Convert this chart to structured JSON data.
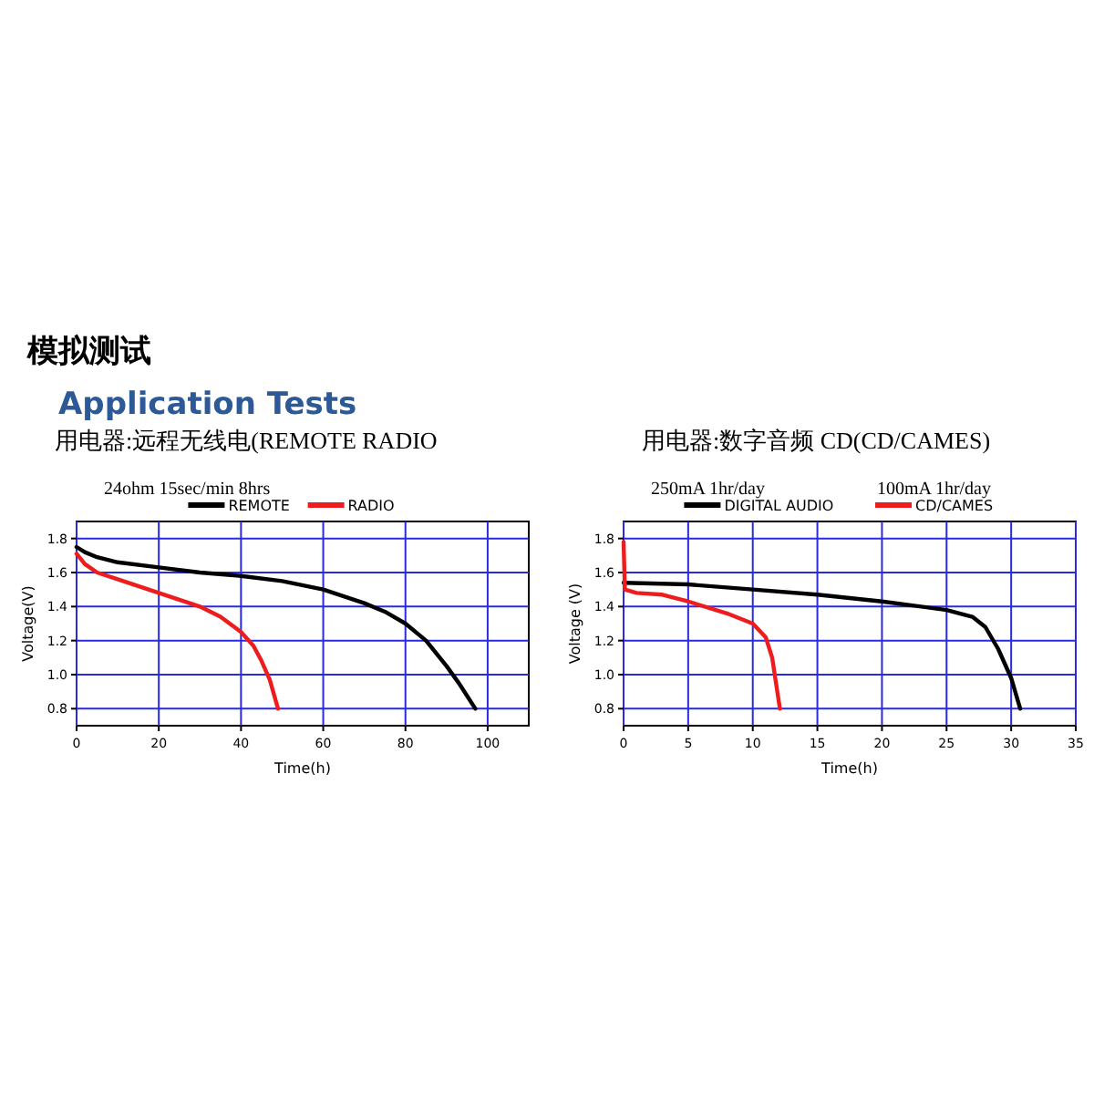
{
  "chart_data": [
    {
      "type": "line",
      "title": "模拟测试",
      "subtitle": "Application Tests",
      "annotations": [
        "用电器:远程无线电(REMOTE RADIO",
        "24ohm 15sec/min 8hrs"
      ],
      "xlabel": "Time(h)",
      "ylabel": "Voltage(V)",
      "xlim": [
        0,
        110
      ],
      "xticks": [
        0,
        20,
        40,
        60,
        80,
        100
      ],
      "ylim": [
        0.7,
        1.9
      ],
      "yticks": [
        0.8,
        {
          "value": 1.0,
          "label": "1.0"
        },
        1.2,
        1.4,
        1.6,
        1.8
      ],
      "grid": true,
      "legend": "top",
      "marker": "none",
      "line_style": "solid",
      "series": [
        {
          "name": "REMOTE",
          "color": "#000000",
          "x": [
            0,
            2,
            5,
            10,
            20,
            30,
            40,
            50,
            60,
            70,
            75,
            80,
            85,
            90,
            93,
            97
          ],
          "values": [
            1.75,
            1.72,
            1.69,
            1.66,
            1.63,
            1.6,
            1.58,
            1.55,
            1.5,
            1.42,
            1.37,
            1.3,
            1.2,
            1.05,
            0.95,
            0.8
          ]
        },
        {
          "name": "RADIO",
          "color": "#ee1c1c",
          "x": [
            0,
            2,
            5,
            10,
            20,
            30,
            35,
            40,
            43,
            45,
            47,
            49
          ],
          "values": [
            1.71,
            1.65,
            1.6,
            1.56,
            1.48,
            1.4,
            1.34,
            1.25,
            1.17,
            1.08,
            0.97,
            0.8
          ]
        }
      ]
    },
    {
      "type": "line",
      "title": "用电器:数字音频 CD(CD/CAMES)",
      "annotations": [
        "250mA 1hr/day",
        "100mA 1hr/day"
      ],
      "xlabel": "Time(h)",
      "ylabel": "Voltage (V)",
      "xlim": [
        0,
        35
      ],
      "xticks": [
        0,
        5,
        10,
        15,
        20,
        25,
        30,
        35
      ],
      "ylim": [
        0.7,
        1.9
      ],
      "yticks": [
        0.8,
        {
          "value": 1.0,
          "label": "1.0"
        },
        1.2,
        1.4,
        1.6,
        1.8
      ],
      "grid": true,
      "legend": "top",
      "marker": "none",
      "line_style": "solid",
      "series": [
        {
          "name": "DIGITAL AUDIO",
          "color": "#000000",
          "x": [
            0,
            5,
            10,
            15,
            20,
            25,
            27,
            28,
            29,
            30,
            30.7
          ],
          "values": [
            1.54,
            1.53,
            1.5,
            1.47,
            1.43,
            1.38,
            1.34,
            1.28,
            1.15,
            0.98,
            0.8
          ]
        },
        {
          "name": "CD/CAMES",
          "color": "#ee1c1c",
          "x": [
            0,
            0.1,
            1,
            3,
            5,
            8,
            10,
            11,
            11.5,
            11.8,
            12.1
          ],
          "values": [
            1.78,
            1.5,
            1.48,
            1.47,
            1.43,
            1.36,
            1.3,
            1.22,
            1.1,
            0.95,
            0.8
          ]
        }
      ]
    }
  ]
}
